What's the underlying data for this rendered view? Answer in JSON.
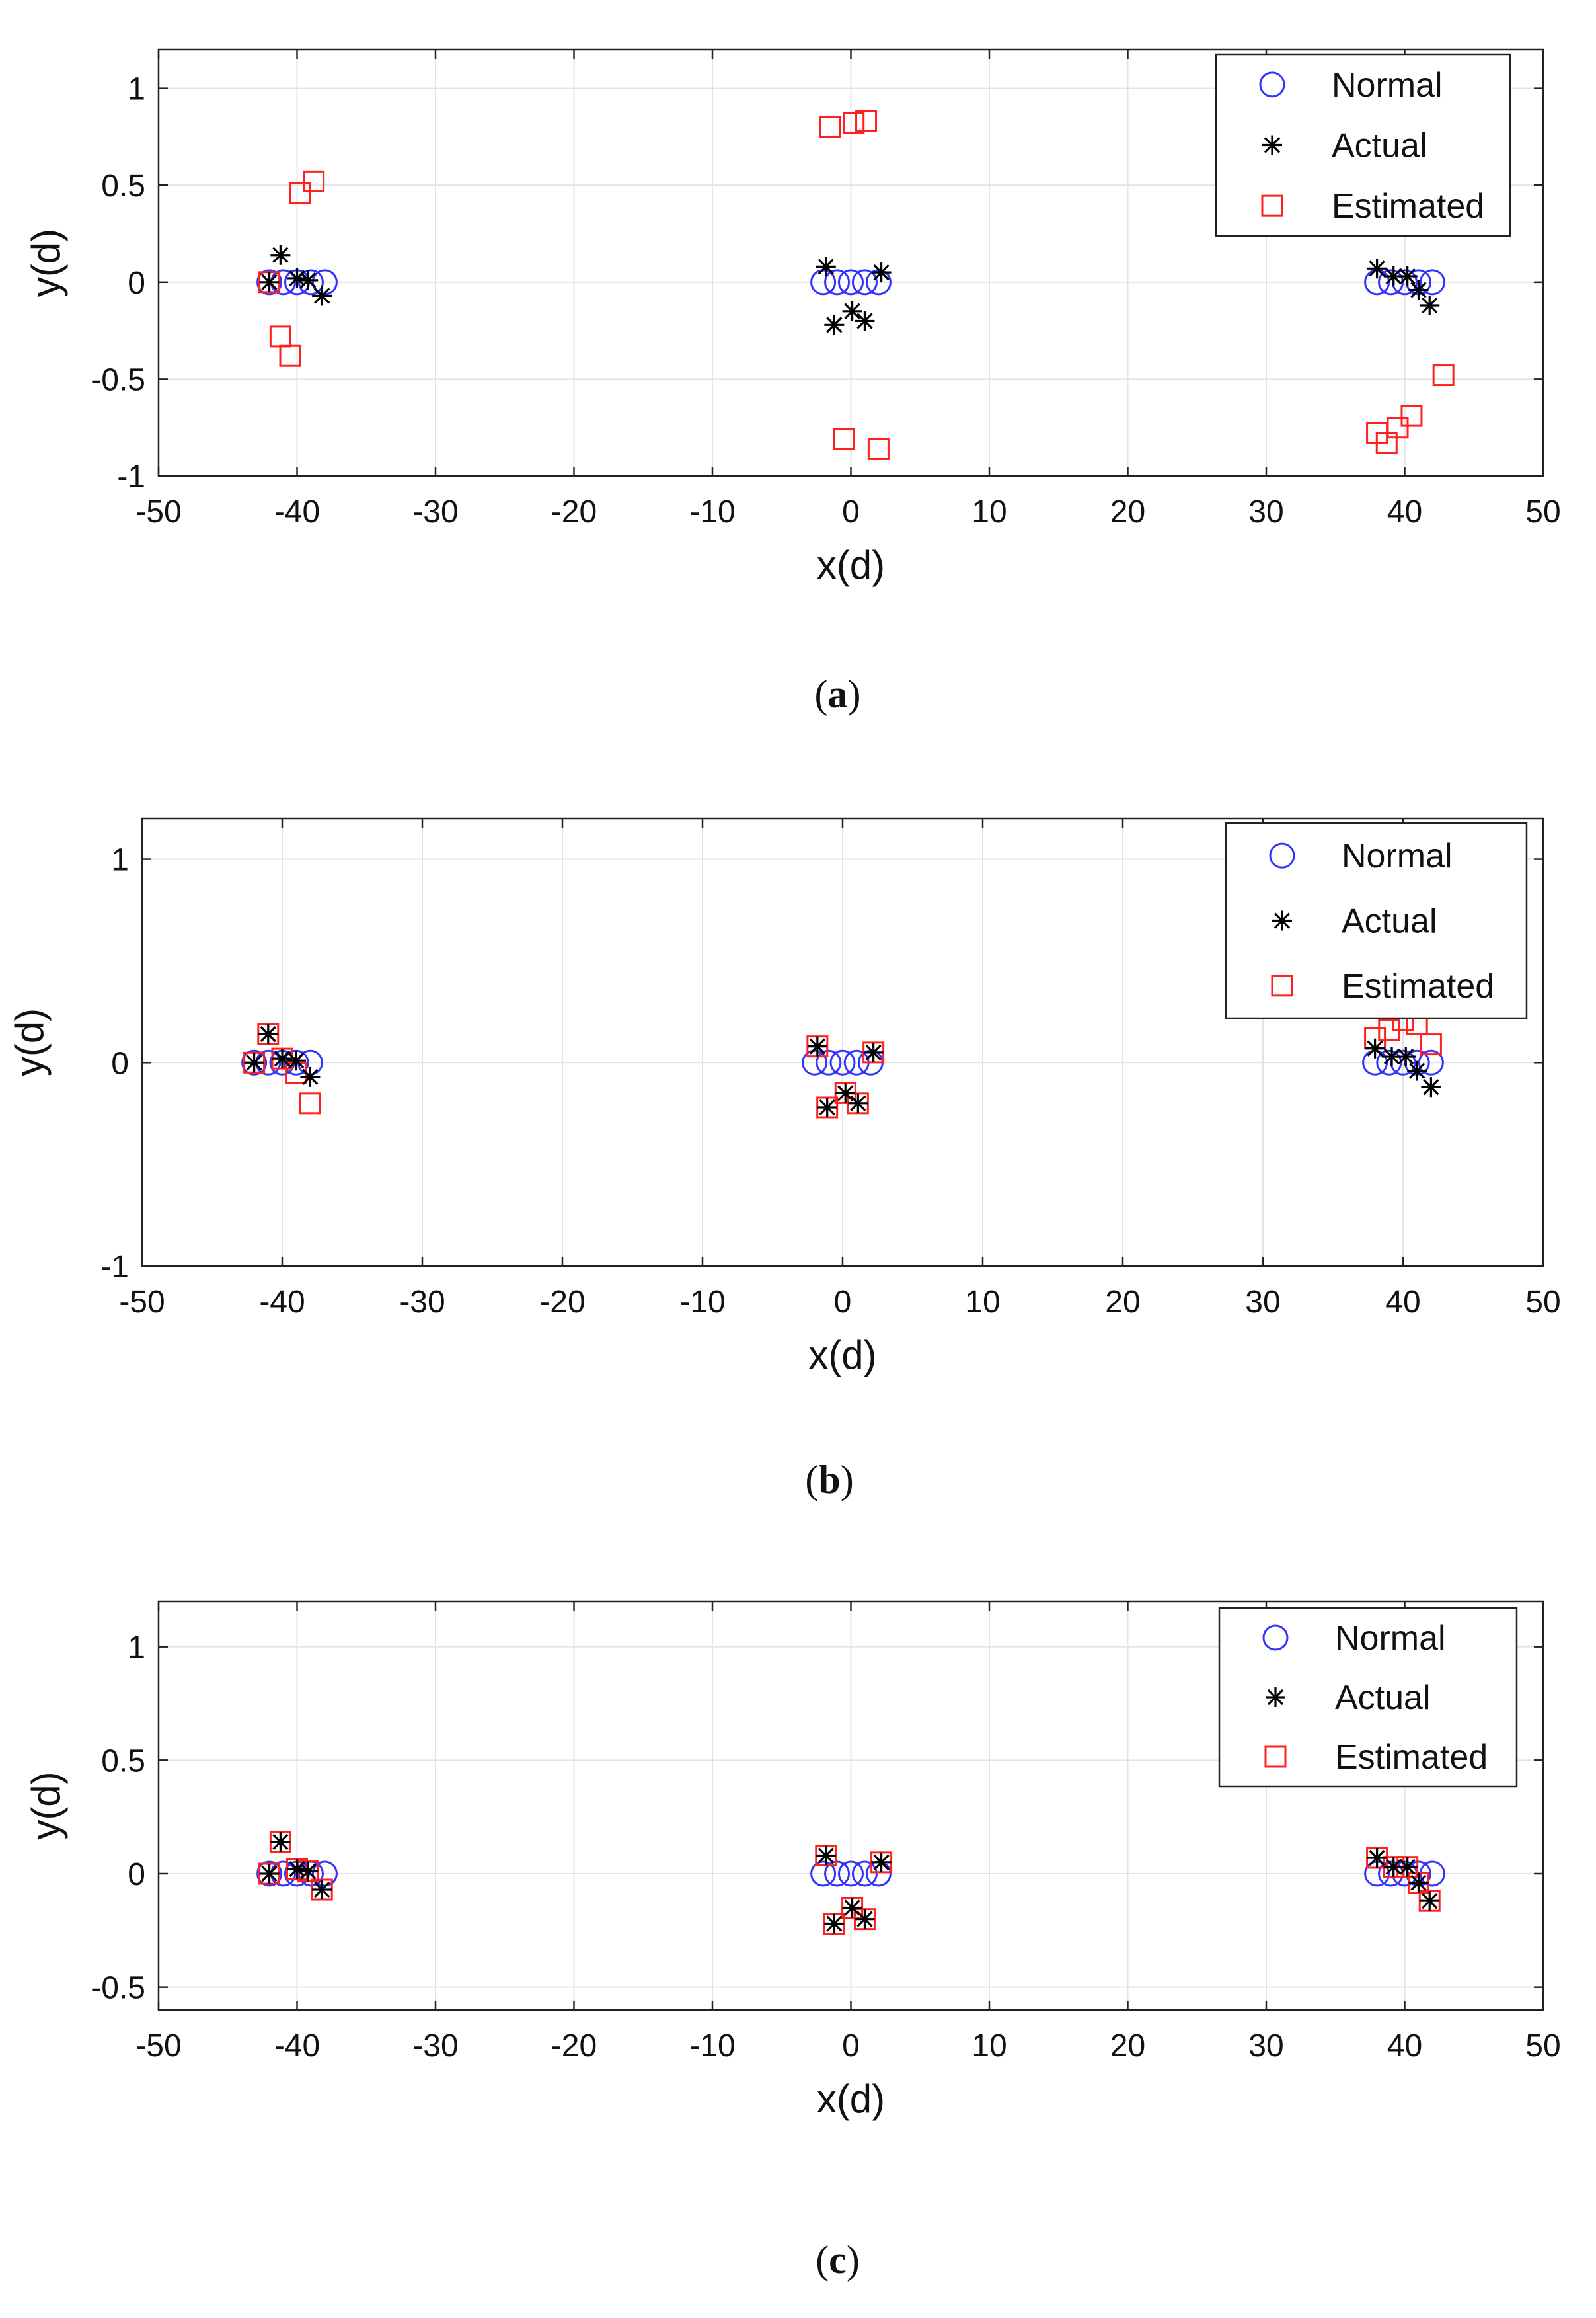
{
  "colors": {
    "normal": "#3333ff",
    "actual": "#000000",
    "estimated": "#ff2020",
    "grid": "#e3e3e3",
    "axis": "#222222"
  },
  "legend": {
    "normal": "Normal",
    "actual": "Actual",
    "estimated": "Estimated"
  },
  "chart_data": [
    {
      "id": "a",
      "type": "scatter",
      "caption": {
        "open": "(",
        "letter": "a",
        "close": ")"
      },
      "xlabel": "x(d)",
      "ylabel": "y(d)",
      "xlim": [
        -50,
        50
      ],
      "ylim": [
        -1,
        1.2
      ],
      "xticks": [
        -50,
        -40,
        -30,
        -20,
        -10,
        0,
        10,
        20,
        30,
        40,
        50
      ],
      "yticks": [
        -1,
        -0.5,
        0,
        0.5,
        1
      ],
      "ytick_labels": [
        "-1",
        "-0.5",
        "0",
        "0.5",
        "1"
      ],
      "grid": true,
      "legend_position": "top-right",
      "series": [
        {
          "name": "Normal",
          "marker": "circle",
          "x": [
            -42,
            -41,
            -40,
            -39,
            -38,
            -2,
            -1,
            0,
            1,
            2,
            38,
            39,
            40,
            41,
            42
          ],
          "y": [
            0,
            0,
            0,
            0,
            0,
            0,
            0,
            0,
            0,
            0,
            0,
            0,
            0,
            0,
            0
          ]
        },
        {
          "name": "Actual",
          "marker": "asterisk",
          "x": [
            -42,
            -41.2,
            -40,
            -39.2,
            -38.2,
            -1.8,
            -1.2,
            0.1,
            1,
            2.2,
            38,
            39.2,
            40.2,
            41,
            41.8
          ],
          "y": [
            0,
            0.14,
            0.02,
            0.01,
            -0.07,
            0.08,
            -0.22,
            -0.15,
            -0.2,
            0.05,
            0.07,
            0.03,
            0.03,
            -0.04,
            -0.12
          ]
        },
        {
          "name": "Estimated",
          "marker": "square",
          "x": [
            -42,
            -41.2,
            -40.5,
            -39.8,
            -38.8,
            -1.5,
            -0.5,
            0.2,
            1.1,
            2,
            38,
            38.7,
            39.5,
            40.5,
            42.8
          ],
          "y": [
            0,
            -0.28,
            -0.38,
            0.46,
            0.52,
            0.8,
            -0.81,
            0.82,
            0.83,
            -0.86,
            -0.78,
            -0.83,
            -0.75,
            -0.69,
            -0.48
          ]
        }
      ]
    },
    {
      "id": "b",
      "type": "scatter",
      "caption": {
        "open": "(",
        "letter": "b",
        "close": ")"
      },
      "xlabel": "x(d)",
      "ylabel": "y(d)",
      "xlim": [
        -50,
        50
      ],
      "ylim": [
        -1,
        1.2
      ],
      "xticks": [
        -50,
        -40,
        -30,
        -20,
        -10,
        0,
        10,
        20,
        30,
        40,
        50
      ],
      "yticks": [
        -1,
        0,
        1
      ],
      "ytick_labels": [
        "-1",
        "0",
        "1"
      ],
      "grid": true,
      "legend_position": "top-right",
      "series": [
        {
          "name": "Normal",
          "marker": "circle",
          "x": [
            -42,
            -41,
            -40,
            -39,
            -38,
            -2,
            -1,
            0,
            1,
            2,
            38,
            39,
            40,
            41,
            42
          ],
          "y": [
            0,
            0,
            0,
            0,
            0,
            0,
            0,
            0,
            0,
            0,
            0,
            0,
            0,
            0,
            0
          ]
        },
        {
          "name": "Actual",
          "marker": "asterisk",
          "x": [
            -42,
            -41,
            -40,
            -39,
            -38,
            -1.8,
            -1.1,
            0.2,
            1.1,
            2.2,
            38,
            39.2,
            40.2,
            41,
            42
          ],
          "y": [
            0,
            0.14,
            0.02,
            0.01,
            -0.07,
            0.08,
            -0.22,
            -0.15,
            -0.2,
            0.05,
            0.07,
            0.03,
            0.03,
            -0.04,
            -0.12
          ]
        },
        {
          "name": "Estimated",
          "marker": "square",
          "x": [
            -42,
            -41,
            -40,
            -39,
            -38,
            -1.8,
            -1.1,
            0.2,
            1.1,
            2.2,
            38,
            39,
            40,
            41,
            42
          ],
          "y": [
            0,
            0.14,
            0.02,
            -0.05,
            -0.2,
            0.08,
            -0.22,
            -0.15,
            -0.2,
            0.05,
            0.12,
            0.16,
            0.21,
            0.19,
            0.09
          ]
        }
      ]
    },
    {
      "id": "c",
      "type": "scatter",
      "caption": {
        "open": "(",
        "letter": "c",
        "close": ")"
      },
      "xlabel": "x(d)",
      "ylabel": "y(d)",
      "xlim": [
        -50,
        50
      ],
      "ylim": [
        -0.6,
        1.2
      ],
      "xticks": [
        -50,
        -40,
        -30,
        -20,
        -10,
        0,
        10,
        20,
        30,
        40,
        50
      ],
      "yticks": [
        -0.5,
        0,
        0.5,
        1
      ],
      "ytick_labels": [
        "-0.5",
        "0",
        "0.5",
        "1"
      ],
      "grid": true,
      "legend_position": "top-right",
      "series": [
        {
          "name": "Normal",
          "marker": "circle",
          "x": [
            -42,
            -41,
            -40,
            -39,
            -38,
            -2,
            -1,
            0,
            1,
            2,
            38,
            39,
            40,
            41,
            42
          ],
          "y": [
            0,
            0,
            0,
            0,
            0,
            0,
            0,
            0,
            0,
            0,
            0,
            0,
            0,
            0,
            0
          ]
        },
        {
          "name": "Actual",
          "marker": "asterisk",
          "x": [
            -42,
            -41.2,
            -40,
            -39.2,
            -38.2,
            -1.8,
            -1.2,
            0.1,
            1,
            2.2,
            38,
            39.2,
            40.2,
            41,
            41.8
          ],
          "y": [
            0,
            0.14,
            0.02,
            0.01,
            -0.07,
            0.08,
            -0.22,
            -0.15,
            -0.2,
            0.05,
            0.07,
            0.03,
            0.03,
            -0.04,
            -0.12
          ]
        },
        {
          "name": "Estimated",
          "marker": "square",
          "x": [
            -42,
            -41.2,
            -40,
            -39.2,
            -38.2,
            -1.8,
            -1.2,
            0.1,
            1,
            2.2,
            38,
            39.2,
            40.2,
            41,
            41.8
          ],
          "y": [
            0,
            0.14,
            0.02,
            0.01,
            -0.07,
            0.08,
            -0.22,
            -0.15,
            -0.2,
            0.05,
            0.07,
            0.03,
            0.03,
            -0.04,
            -0.12
          ]
        }
      ]
    }
  ]
}
